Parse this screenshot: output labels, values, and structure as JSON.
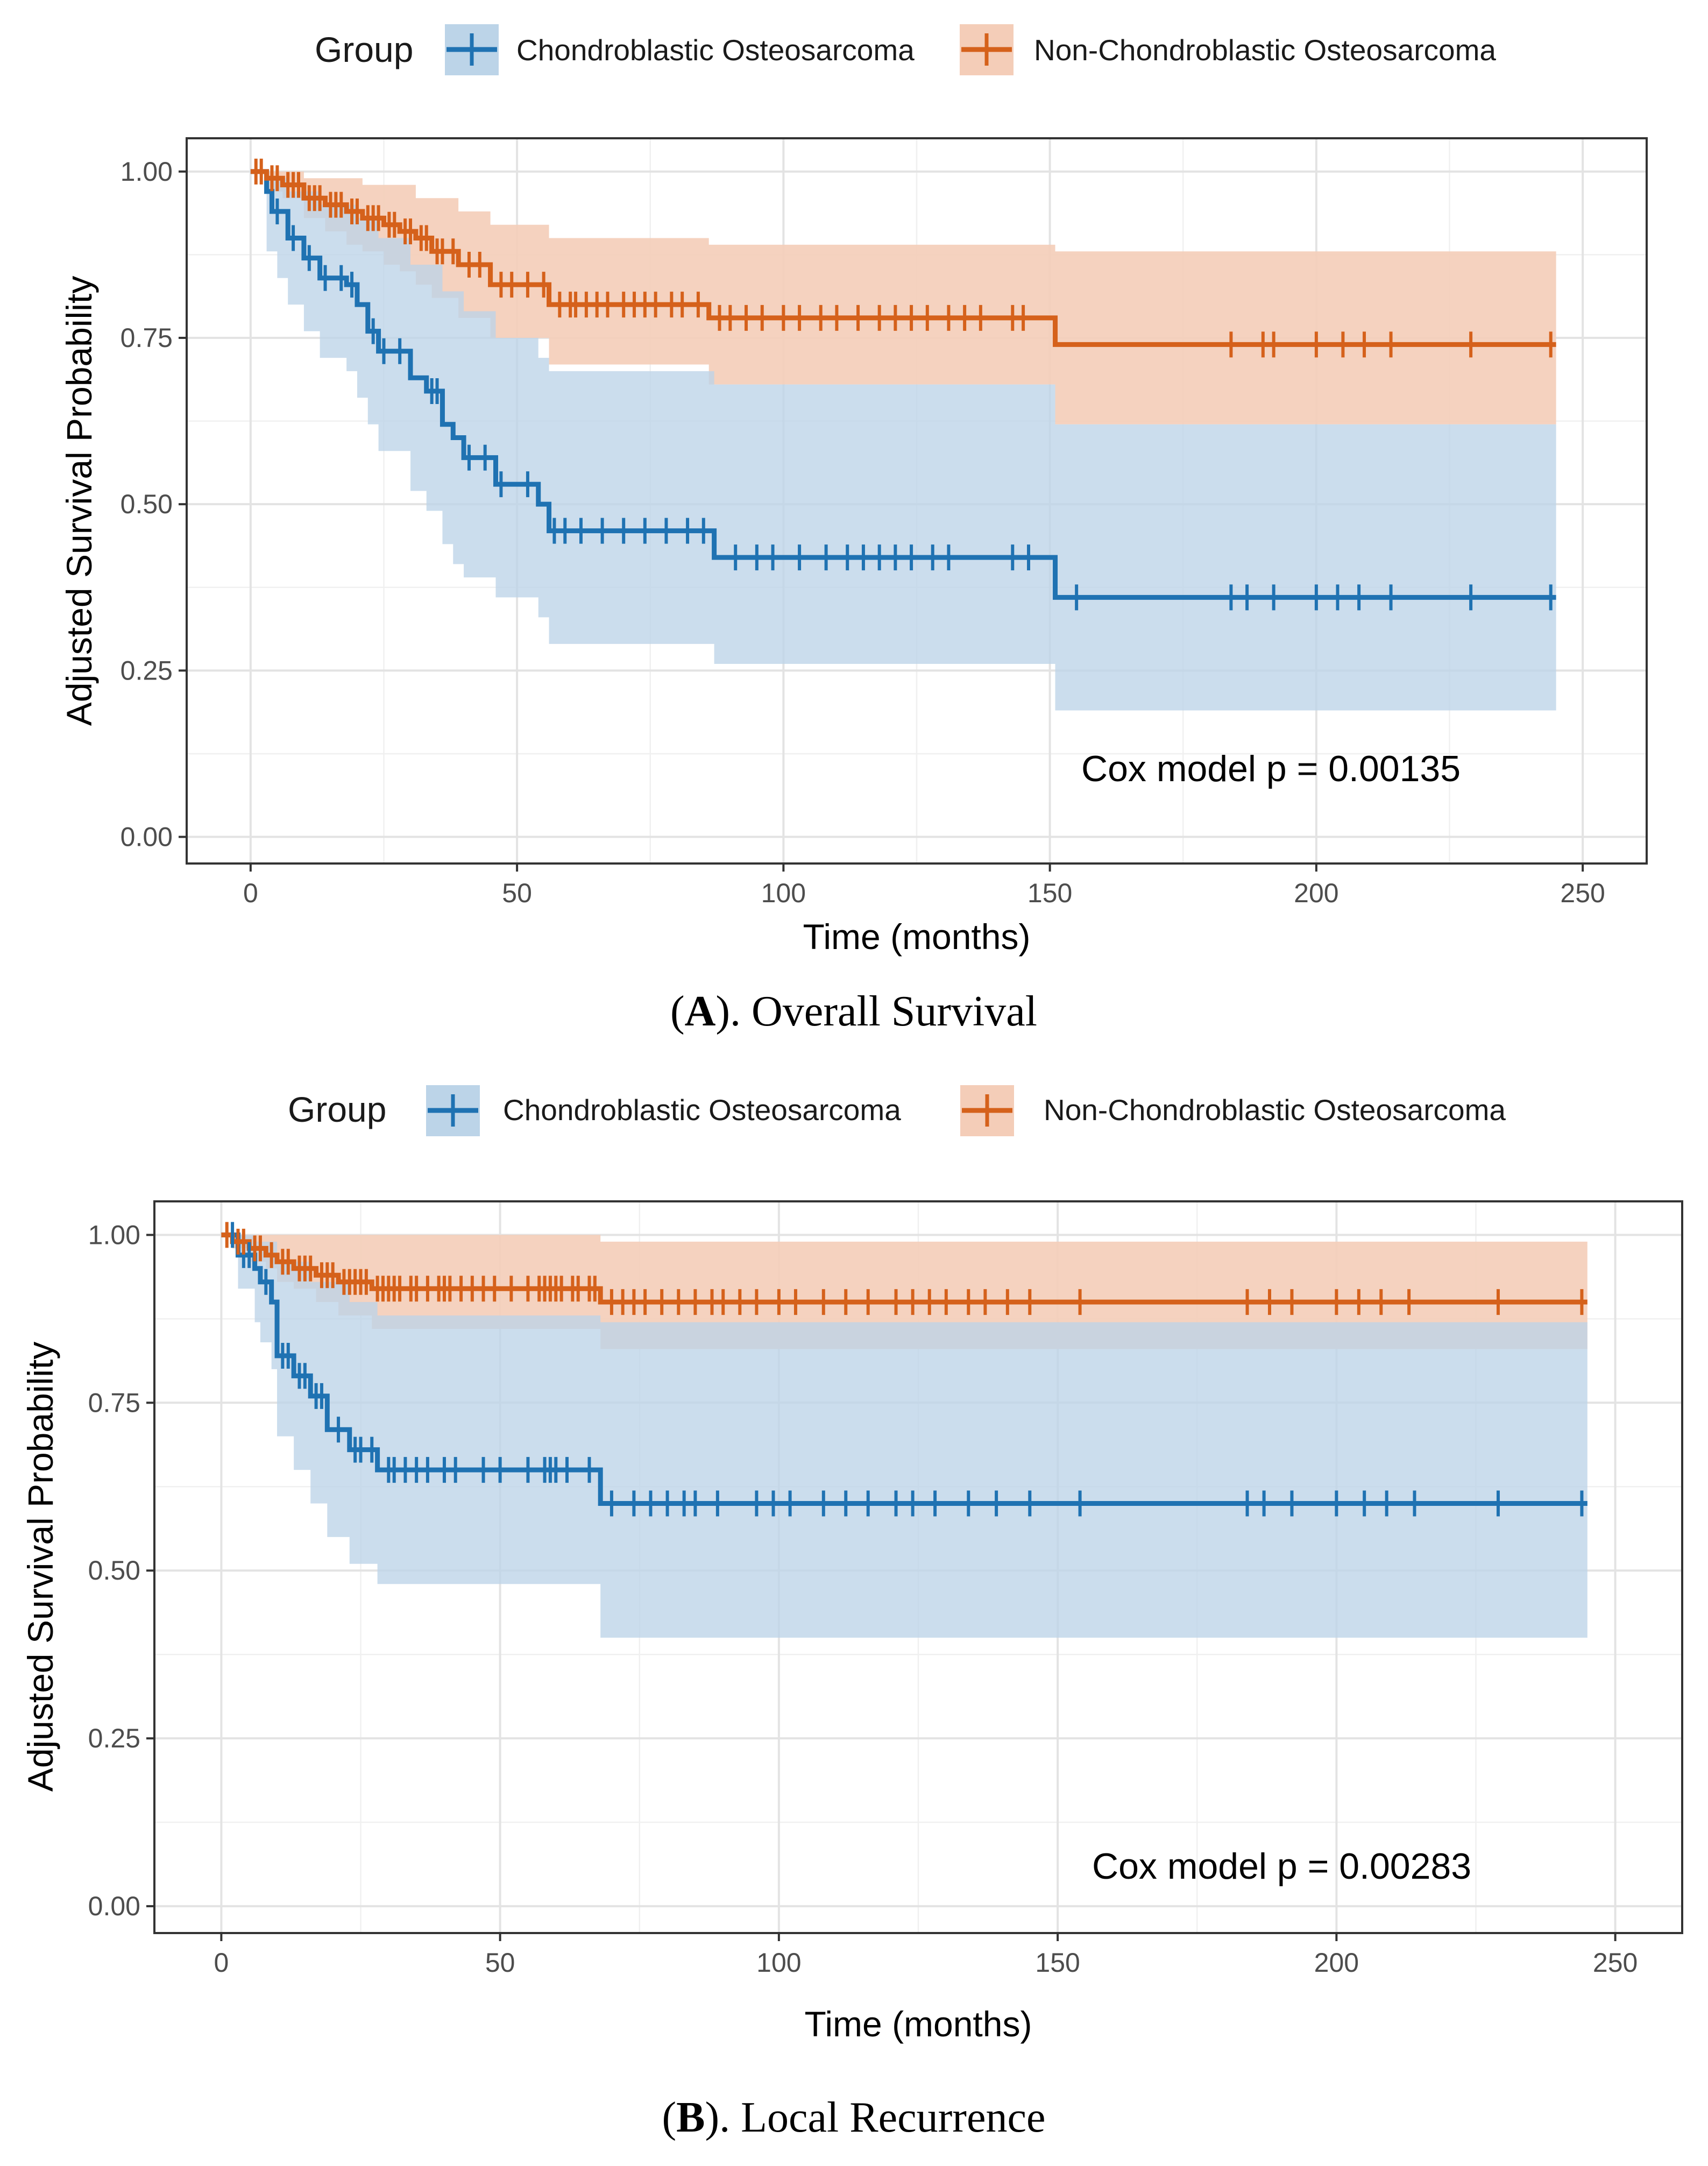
{
  "figure": {
    "colors": {
      "chondroblastic": "#1f72b2",
      "non_chondroblastic": "#d5611b",
      "chondroblastic_band": "#bcd4e8",
      "non_chondroblastic_band": "#f4cdb8",
      "overlap_band": "#c9aba1"
    }
  },
  "panels": [
    {
      "legend": {
        "title": "Group",
        "entries": [
          "Chondroblastic Osteosarcoma",
          "Non-Chondroblastic Osteosarcoma"
        ]
      },
      "caption": {
        "label": "A",
        "text": "). Overall Survival"
      },
      "annotation": "Cox model p = 0.00135"
    },
    {
      "legend": {
        "title": "Group",
        "entries": [
          "Chondroblastic Osteosarcoma",
          "Non-Chondroblastic Osteosarcoma"
        ]
      },
      "caption": {
        "label": "B",
        "text": "). Local Recurrence"
      },
      "annotation": "Cox model p = 0.00283"
    }
  ],
  "chart_data": [
    {
      "type": "line",
      "subtype": "kaplan-meier-step",
      "title": "Overall Survival",
      "xlabel": "Time (months)",
      "ylabel": "Adjusted Survival Probability",
      "xlim": [
        -12,
        262
      ],
      "ylim": [
        -0.04,
        1.05
      ],
      "xticks": [
        0,
        50,
        100,
        150,
        200,
        250
      ],
      "yticks": [
        0.0,
        0.25,
        0.5,
        0.75,
        1.0
      ],
      "ytick_labels": [
        "0.00",
        "0.25",
        "0.50",
        "0.75",
        "1.00"
      ],
      "grid": true,
      "legend_position": "top",
      "series": [
        {
          "name": "Chondroblastic Osteosarcoma",
          "steps": [
            [
              0,
              1.0
            ],
            [
              3,
              0.97
            ],
            [
              4,
              0.94
            ],
            [
              7,
              0.9
            ],
            [
              10,
              0.87
            ],
            [
              13,
              0.84
            ],
            [
              18,
              0.83
            ],
            [
              20,
              0.8
            ],
            [
              22,
              0.76
            ],
            [
              24,
              0.73
            ],
            [
              30,
              0.69
            ],
            [
              33,
              0.67
            ],
            [
              36,
              0.62
            ],
            [
              38,
              0.6
            ],
            [
              40,
              0.57
            ],
            [
              46,
              0.53
            ],
            [
              54,
              0.5
            ],
            [
              56,
              0.46
            ],
            [
              87,
              0.42
            ],
            [
              151,
              0.36
            ],
            [
              245,
              0.36
            ]
          ],
          "censor_times": [
            5,
            8,
            11,
            14,
            17,
            19,
            23,
            25,
            28,
            34,
            35,
            41,
            44,
            47,
            52,
            57,
            59,
            62,
            66,
            70,
            74,
            78,
            82,
            85,
            91,
            95,
            98,
            103,
            108,
            112,
            115,
            118,
            121,
            124,
            128,
            131,
            143,
            146,
            155,
            184,
            187,
            192,
            200,
            204,
            208,
            214,
            229,
            244
          ],
          "ci_upper": [
            [
              0,
              1.0
            ],
            [
              3,
              0.99
            ],
            [
              7,
              0.97
            ],
            [
              13,
              0.95
            ],
            [
              20,
              0.93
            ],
            [
              24,
              0.9
            ],
            [
              30,
              0.86
            ],
            [
              36,
              0.82
            ],
            [
              40,
              0.79
            ],
            [
              46,
              0.75
            ],
            [
              54,
              0.72
            ],
            [
              56,
              0.7
            ],
            [
              87,
              0.68
            ],
            [
              151,
              0.62
            ],
            [
              245,
              0.62
            ]
          ],
          "ci_lower": [
            [
              0,
              1.0
            ],
            [
              3,
              0.88
            ],
            [
              5,
              0.84
            ],
            [
              7,
              0.8
            ],
            [
              10,
              0.76
            ],
            [
              13,
              0.72
            ],
            [
              18,
              0.7
            ],
            [
              20,
              0.66
            ],
            [
              22,
              0.62
            ],
            [
              24,
              0.58
            ],
            [
              30,
              0.52
            ],
            [
              33,
              0.49
            ],
            [
              36,
              0.44
            ],
            [
              38,
              0.41
            ],
            [
              40,
              0.39
            ],
            [
              46,
              0.36
            ],
            [
              54,
              0.33
            ],
            [
              56,
              0.29
            ],
            [
              87,
              0.26
            ],
            [
              151,
              0.19
            ],
            [
              245,
              0.19
            ]
          ]
        },
        {
          "name": "Non-Chondroblastic Osteosarcoma",
          "steps": [
            [
              0,
              1.0
            ],
            [
              3,
              0.99
            ],
            [
              6,
              0.98
            ],
            [
              10,
              0.96
            ],
            [
              14,
              0.95
            ],
            [
              18,
              0.94
            ],
            [
              21,
              0.93
            ],
            [
              25,
              0.92
            ],
            [
              28,
              0.91
            ],
            [
              31,
              0.9
            ],
            [
              34,
              0.88
            ],
            [
              39,
              0.86
            ],
            [
              45,
              0.83
            ],
            [
              56,
              0.8
            ],
            [
              86,
              0.78
            ],
            [
              151,
              0.74
            ],
            [
              245,
              0.74
            ]
          ],
          "censor_times": [
            1,
            2,
            4,
            5,
            7,
            8,
            9,
            11,
            12,
            13,
            15,
            16,
            17,
            19,
            20,
            22,
            23,
            24,
            26,
            27,
            29,
            30,
            32,
            33,
            35,
            36,
            38,
            41,
            43,
            47,
            49,
            52,
            55,
            58,
            60,
            61,
            63,
            65,
            67,
            70,
            72,
            74,
            76,
            79,
            81,
            84,
            88,
            90,
            93,
            96,
            100,
            103,
            107,
            110,
            114,
            118,
            121,
            124,
            127,
            131,
            134,
            137,
            143,
            145,
            184,
            190,
            192,
            200,
            205,
            209,
            214,
            229,
            244
          ],
          "ci_upper": [
            [
              0,
              1.0
            ],
            [
              10,
              0.99
            ],
            [
              21,
              0.98
            ],
            [
              31,
              0.96
            ],
            [
              39,
              0.94
            ],
            [
              45,
              0.92
            ],
            [
              56,
              0.9
            ],
            [
              86,
              0.89
            ],
            [
              151,
              0.88
            ],
            [
              245,
              0.88
            ]
          ],
          "ci_lower": [
            [
              0,
              1.0
            ],
            [
              3,
              0.97
            ],
            [
              6,
              0.96
            ],
            [
              10,
              0.93
            ],
            [
              14,
              0.91
            ],
            [
              18,
              0.89
            ],
            [
              21,
              0.88
            ],
            [
              25,
              0.86
            ],
            [
              28,
              0.85
            ],
            [
              31,
              0.83
            ],
            [
              34,
              0.81
            ],
            [
              39,
              0.78
            ],
            [
              45,
              0.75
            ],
            [
              56,
              0.71
            ],
            [
              86,
              0.68
            ],
            [
              151,
              0.62
            ],
            [
              245,
              0.62
            ]
          ]
        }
      ]
    },
    {
      "type": "line",
      "subtype": "kaplan-meier-step",
      "title": "Local Recurrence",
      "xlabel": "Time (months)",
      "ylabel": "Adjusted Survival Probability",
      "xlim": [
        -12,
        262
      ],
      "ylim": [
        -0.04,
        1.05
      ],
      "xticks": [
        0,
        50,
        100,
        150,
        200,
        250
      ],
      "yticks": [
        0.0,
        0.25,
        0.5,
        0.75,
        1.0
      ],
      "ytick_labels": [
        "0.00",
        "0.25",
        "0.50",
        "0.75",
        "1.00"
      ],
      "grid": true,
      "legend_position": "top",
      "series": [
        {
          "name": "Chondroblastic Osteosarcoma",
          "steps": [
            [
              0,
              1.0
            ],
            [
              3,
              0.97
            ],
            [
              6,
              0.95
            ],
            [
              7,
              0.93
            ],
            [
              9,
              0.9
            ],
            [
              10,
              0.82
            ],
            [
              13,
              0.79
            ],
            [
              16,
              0.76
            ],
            [
              19,
              0.71
            ],
            [
              23,
              0.68
            ],
            [
              28,
              0.65
            ],
            [
              68,
              0.6
            ],
            [
              245,
              0.6
            ]
          ],
          "censor_times": [
            2,
            4,
            5,
            8,
            11,
            12,
            14,
            15,
            17,
            18,
            21,
            24,
            25,
            27,
            30,
            31,
            33,
            35,
            37,
            40,
            42,
            47,
            50,
            55,
            58,
            59,
            60,
            62,
            66,
            70,
            74,
            77,
            80,
            83,
            85,
            89,
            96,
            99,
            102,
            108,
            112,
            116,
            121,
            124,
            128,
            134,
            139,
            145,
            154,
            184,
            187,
            192,
            200,
            205,
            209,
            214,
            229,
            244
          ],
          "ci_upper": [
            [
              0,
              1.0
            ],
            [
              6,
              0.99
            ],
            [
              10,
              0.96
            ],
            [
              16,
              0.93
            ],
            [
              23,
              0.9
            ],
            [
              28,
              0.88
            ],
            [
              68,
              0.87
            ],
            [
              245,
              0.87
            ]
          ],
          "ci_lower": [
            [
              0,
              1.0
            ],
            [
              3,
              0.92
            ],
            [
              6,
              0.87
            ],
            [
              7,
              0.84
            ],
            [
              9,
              0.8
            ],
            [
              10,
              0.7
            ],
            [
              13,
              0.65
            ],
            [
              16,
              0.6
            ],
            [
              19,
              0.55
            ],
            [
              23,
              0.51
            ],
            [
              28,
              0.48
            ],
            [
              68,
              0.4
            ],
            [
              245,
              0.4
            ]
          ]
        },
        {
          "name": "Non-Chondroblastic Osteosarcoma",
          "steps": [
            [
              0,
              1.0
            ],
            [
              2,
              0.99
            ],
            [
              5,
              0.98
            ],
            [
              8,
              0.97
            ],
            [
              10,
              0.96
            ],
            [
              13,
              0.95
            ],
            [
              17,
              0.94
            ],
            [
              21,
              0.93
            ],
            [
              27,
              0.92
            ],
            [
              68,
              0.9
            ],
            [
              245,
              0.9
            ]
          ],
          "censor_times": [
            1,
            3,
            4,
            6,
            7,
            9,
            11,
            12,
            14,
            15,
            16,
            18,
            19,
            20,
            22,
            23,
            24,
            25,
            26,
            28,
            29,
            30,
            31,
            32,
            34,
            35,
            37,
            39,
            40,
            41,
            43,
            45,
            47,
            49,
            52,
            55,
            57,
            58,
            59,
            60,
            61,
            63,
            64,
            66,
            67,
            70,
            72,
            74,
            76,
            79,
            82,
            85,
            88,
            90,
            93,
            96,
            100,
            103,
            108,
            112,
            116,
            121,
            124,
            127,
            130,
            134,
            137,
            141,
            145,
            154,
            184,
            188,
            192,
            200,
            204,
            208,
            213,
            229,
            244
          ],
          "ci_upper": [
            [
              0,
              1.0
            ],
            [
              68,
              0.99
            ],
            [
              245,
              0.98
            ]
          ],
          "ci_lower": [
            [
              0,
              1.0
            ],
            [
              2,
              0.98
            ],
            [
              5,
              0.96
            ],
            [
              8,
              0.95
            ],
            [
              10,
              0.93
            ],
            [
              13,
              0.92
            ],
            [
              17,
              0.9
            ],
            [
              21,
              0.88
            ],
            [
              27,
              0.86
            ],
            [
              68,
              0.83
            ],
            [
              245,
              0.83
            ]
          ]
        }
      ]
    }
  ]
}
